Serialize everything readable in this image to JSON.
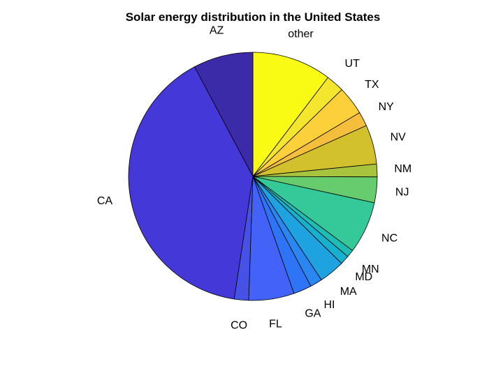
{
  "chart_data": {
    "type": "pie",
    "title": "Solar energy distribution in the United States",
    "slices": [
      {
        "label": "other",
        "value": 10.5,
        "color": "#f9fb15"
      },
      {
        "label": "UT",
        "value": 2.4,
        "color": "#f4e62c"
      },
      {
        "label": "TX",
        "value": 3.8,
        "color": "#fcd03b"
      },
      {
        "label": "NY",
        "value": 1.9,
        "color": "#f5bf3d"
      },
      {
        "label": "NV",
        "value": 5.2,
        "color": "#d2c12d"
      },
      {
        "label": "NM",
        "value": 1.7,
        "color": "#a8c43f"
      },
      {
        "label": "NJ",
        "value": 3.4,
        "color": "#66cc6e"
      },
      {
        "label": "NC",
        "value": 6.9,
        "color": "#35c898"
      },
      {
        "label": "MN",
        "value": 1.0,
        "color": "#1fbcb5"
      },
      {
        "label": "MD",
        "value": 1.2,
        "color": "#17b0ce"
      },
      {
        "label": "MA",
        "value": 3.4,
        "color": "#1fa2e0"
      },
      {
        "label": "HI",
        "value": 1.6,
        "color": "#2a86f0"
      },
      {
        "label": "GA",
        "value": 2.4,
        "color": "#2d74f7"
      },
      {
        "label": "FL",
        "value": 6.0,
        "color": "#4262f8"
      },
      {
        "label": "CO",
        "value": 1.9,
        "color": "#4651e6"
      },
      {
        "label": "CA",
        "value": 40.5,
        "color": "#4538d8"
      },
      {
        "label": "AZ",
        "value": 7.9,
        "color": "#3c2ba8"
      }
    ]
  }
}
